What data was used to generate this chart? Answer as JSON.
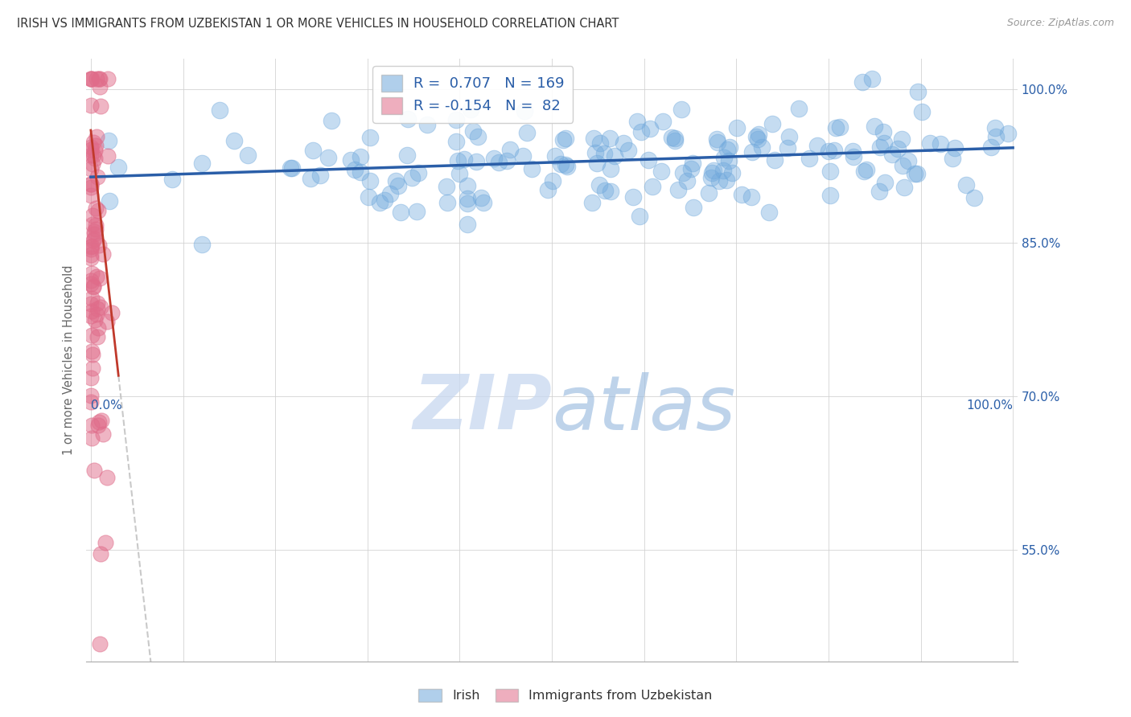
{
  "title": "IRISH VS IMMIGRANTS FROM UZBEKISTAN 1 OR MORE VEHICLES IN HOUSEHOLD CORRELATION CHART",
  "source": "Source: ZipAtlas.com",
  "ylabel": "1 or more Vehicles in Household",
  "ytick_values": [
    1.0,
    0.85,
    0.7,
    0.55
  ],
  "legend_irish_R": "R =  0.707",
  "legend_irish_N": "N = 169",
  "legend_uzb_R": "R = -0.154",
  "legend_uzb_N": "N =  82",
  "irish_color": "#6fa8dc",
  "uzbek_color": "#e06c8a",
  "trend_irish_color": "#2a5ea8",
  "trend_uzb_color": "#c0392b",
  "trend_dashed_color": "#c0c0c0",
  "background_color": "#ffffff",
  "grid_color": "#d0d0d0",
  "axis_label_color": "#2a5ea8",
  "watermark_zip_color": "#c8d8f0",
  "watermark_atlas_color": "#9bbce0",
  "irish_N": 169,
  "uzbek_N": 82,
  "irish_R": 0.707,
  "uzbek_R": -0.154,
  "xmin": 0.0,
  "xmax": 1.0,
  "ymin": 0.44,
  "ymax": 1.03
}
